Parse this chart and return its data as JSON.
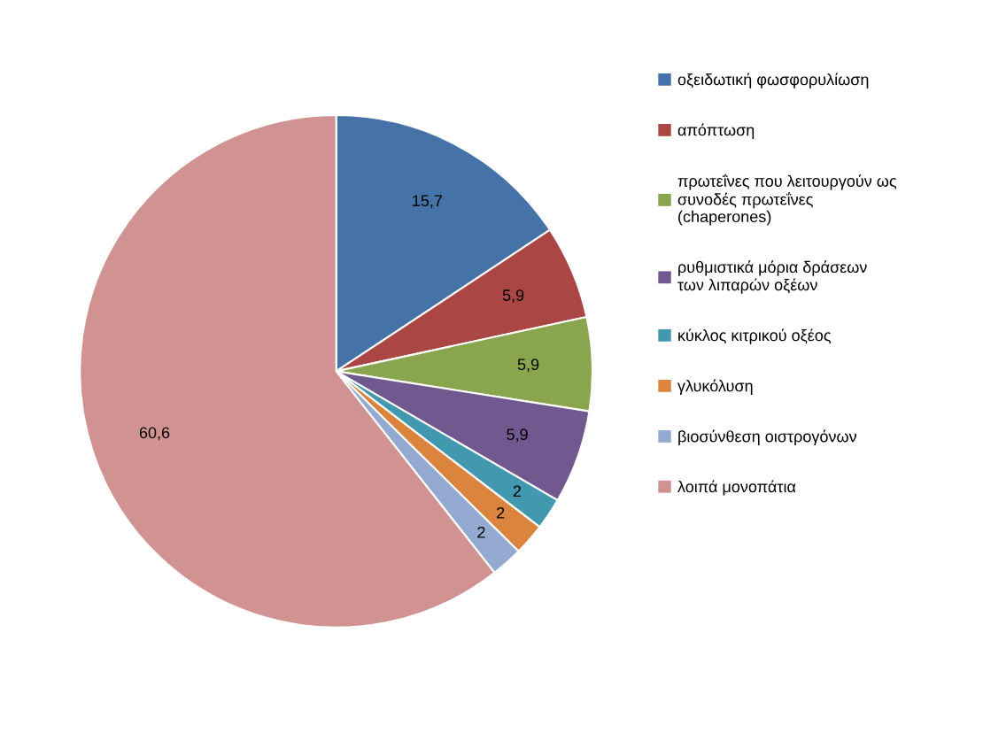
{
  "chart_data": {
    "type": "pie",
    "categories": [
      "οξειδωτική φωσφορυλίωση",
      "απόπτωση",
      "πρωτεΐνες που λειτουργούν ως\nσυνοδές πρωτεΐνες\n(chaperones)",
      "ρυθμιστικά μόρια δράσεων\nτων λιπαρών οξέων",
      "κύκλος κιτρικού οξέος",
      "γλυκόλυση",
      "βιοσύνθεση οιστρογόνων",
      "λοιπά μονοπάτια"
    ],
    "values": [
      15.7,
      5.9,
      5.9,
      5.9,
      2,
      2,
      2,
      60.6
    ],
    "colors": [
      "#4572a7",
      "#aa4643",
      "#89a54e",
      "#71588f",
      "#4198af",
      "#db843d",
      "#93a9cf",
      "#d19392"
    ],
    "value_labels": [
      "15,7",
      "5,9",
      "5,9",
      "5,9",
      "2",
      "2",
      "2",
      "60,6"
    ],
    "legend": "right"
  }
}
